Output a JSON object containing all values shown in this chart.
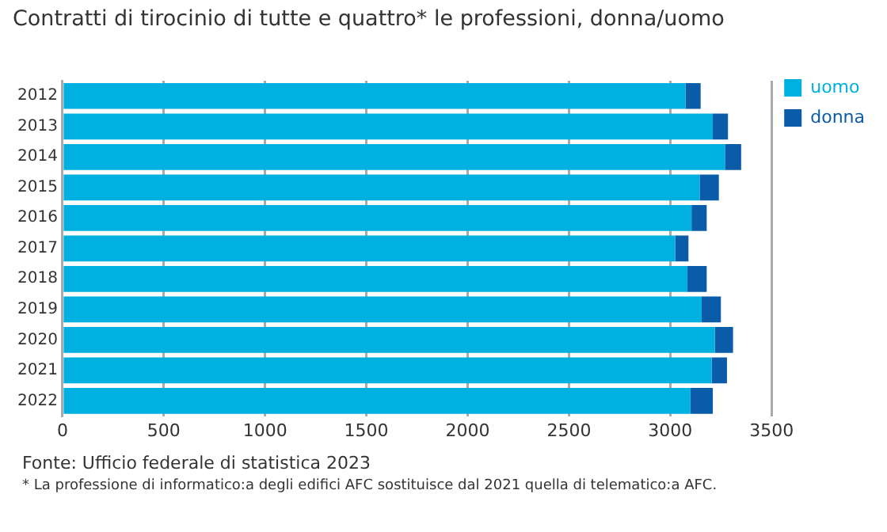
{
  "chart_data": {
    "type": "bar",
    "orientation": "horizontal",
    "stacked": true,
    "title": "Contratti di tirocinio di tutte e quattro* le professioni, donna/uomo",
    "categories": [
      "2012",
      "2013",
      "2014",
      "2015",
      "2016",
      "2017",
      "2018",
      "2019",
      "2020",
      "2021",
      "2022"
    ],
    "series": [
      {
        "name": "uomo",
        "color": "#00b0e0",
        "values": [
          3075,
          3210,
          3270,
          3145,
          3105,
          3025,
          3085,
          3155,
          3220,
          3205,
          3100
        ]
      },
      {
        "name": "donna",
        "color": "#0a5ca8",
        "values": [
          75,
          75,
          80,
          95,
          75,
          65,
          95,
          95,
          90,
          75,
          110
        ]
      }
    ],
    "xlim": [
      0,
      3500
    ],
    "xticks": [
      0,
      500,
      1000,
      1500,
      2000,
      2500,
      3000,
      3500
    ],
    "grid": "x",
    "legend": "top right",
    "annotations": [
      "Fonte: Ufficio federale di statistica 2023",
      "* La professione di informatico:a degli edifici AFC sostituisce dal 2021 quella di telematico:a AFC."
    ]
  }
}
